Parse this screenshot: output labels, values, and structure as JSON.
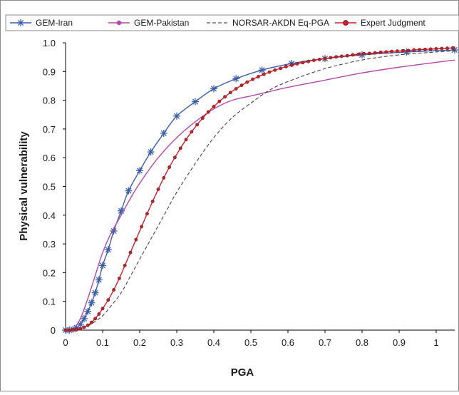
{
  "chart_data": {
    "type": "line",
    "xlabel": "PGA",
    "ylabel": "Physical vulnerability",
    "xlim": [
      0,
      1.05
    ],
    "ylim": [
      0,
      1.0
    ],
    "x_ticks": [
      "0",
      "0.1",
      "0.2",
      "0.3",
      "0.4",
      "0.5",
      "0.6",
      "0.7",
      "0.8",
      "0.9",
      "1"
    ],
    "y_ticks": [
      "0",
      "0.1",
      "0.2",
      "0.3",
      "0.4",
      "0.5",
      "0.6",
      "0.7",
      "0.8",
      "0.9",
      "1.0"
    ],
    "grid": false,
    "legend_position": "top",
    "series": [
      {
        "name": "GEM-Iran",
        "color": "#3a5ea8",
        "marker": "asterisk",
        "line": "solid",
        "x": [
          0.0,
          0.01,
          0.02,
          0.03,
          0.04,
          0.05,
          0.06,
          0.07,
          0.08,
          0.09,
          0.1,
          0.115,
          0.13,
          0.15,
          0.17,
          0.2,
          0.23,
          0.265,
          0.3,
          0.35,
          0.4,
          0.46,
          0.53,
          0.61,
          0.7,
          0.8,
          0.92,
          1.05
        ],
        "y": [
          0.0,
          0.0,
          0.003,
          0.008,
          0.02,
          0.04,
          0.065,
          0.095,
          0.13,
          0.175,
          0.225,
          0.28,
          0.345,
          0.415,
          0.485,
          0.555,
          0.62,
          0.685,
          0.745,
          0.795,
          0.84,
          0.875,
          0.905,
          0.928,
          0.945,
          0.958,
          0.968,
          0.975
        ]
      },
      {
        "name": "GEM-Pakistan",
        "color": "#b04aa8",
        "marker": "none",
        "line": "solid",
        "x": [
          0.0,
          0.02,
          0.04,
          0.06,
          0.08,
          0.1,
          0.12,
          0.15,
          0.18,
          0.21,
          0.25,
          0.3,
          0.35,
          0.4,
          0.45,
          0.5,
          0.55,
          0.6,
          0.7,
          0.8,
          0.9,
          1.0,
          1.05
        ],
        "y": [
          0.0,
          0.005,
          0.04,
          0.11,
          0.19,
          0.27,
          0.33,
          0.4,
          0.47,
          0.53,
          0.6,
          0.67,
          0.725,
          0.77,
          0.8,
          0.815,
          0.83,
          0.845,
          0.87,
          0.895,
          0.915,
          0.932,
          0.94
        ]
      },
      {
        "name": "NORSAR-AKDN Eq-PGA",
        "color": "#333333",
        "marker": "none",
        "line": "dashed",
        "x": [
          0.0,
          0.04,
          0.06,
          0.08,
          0.1,
          0.12,
          0.15,
          0.18,
          0.21,
          0.24,
          0.27,
          0.3,
          0.35,
          0.4,
          0.45,
          0.5,
          0.55,
          0.6,
          0.7,
          0.8,
          0.9,
          1.0,
          1.05
        ],
        "y": [
          0.0,
          0.005,
          0.015,
          0.03,
          0.05,
          0.08,
          0.13,
          0.2,
          0.27,
          0.34,
          0.41,
          0.48,
          0.58,
          0.67,
          0.74,
          0.79,
          0.835,
          0.865,
          0.91,
          0.94,
          0.958,
          0.968,
          0.972
        ]
      },
      {
        "name": "Expert Judgment",
        "color": "#c8232c",
        "marker": "dot",
        "line": "solid",
        "x": [
          0.0,
          0.01,
          0.02,
          0.03,
          0.04,
          0.05,
          0.06,
          0.07,
          0.08,
          0.09,
          0.1,
          0.115,
          0.13,
          0.145,
          0.16,
          0.175,
          0.19,
          0.205,
          0.22,
          0.235,
          0.25,
          0.265,
          0.28,
          0.295,
          0.31,
          0.325,
          0.34,
          0.355,
          0.37,
          0.385,
          0.4,
          0.415,
          0.43,
          0.445,
          0.46,
          0.475,
          0.49,
          0.505,
          0.52,
          0.535,
          0.55,
          0.565,
          0.58,
          0.595,
          0.61,
          0.625,
          0.64,
          0.655,
          0.67,
          0.685,
          0.7,
          0.715,
          0.73,
          0.745,
          0.76,
          0.775,
          0.79,
          0.805,
          0.82,
          0.835,
          0.85,
          0.865,
          0.88,
          0.895,
          0.91,
          0.925,
          0.94,
          0.955,
          0.97,
          0.985,
          1.0,
          1.015,
          1.03,
          1.045
        ],
        "y": [
          0.0,
          0.0,
          0.001,
          0.002,
          0.005,
          0.01,
          0.017,
          0.027,
          0.04,
          0.056,
          0.075,
          0.105,
          0.14,
          0.18,
          0.225,
          0.27,
          0.315,
          0.36,
          0.405,
          0.448,
          0.49,
          0.53,
          0.567,
          0.601,
          0.633,
          0.663,
          0.69,
          0.715,
          0.738,
          0.759,
          0.778,
          0.796,
          0.812,
          0.827,
          0.84,
          0.852,
          0.863,
          0.873,
          0.882,
          0.89,
          0.898,
          0.905,
          0.911,
          0.917,
          0.922,
          0.927,
          0.931,
          0.935,
          0.939,
          0.942,
          0.945,
          0.948,
          0.951,
          0.953,
          0.955,
          0.958,
          0.96,
          0.962,
          0.963,
          0.965,
          0.967,
          0.968,
          0.97,
          0.971,
          0.972,
          0.973,
          0.975,
          0.976,
          0.977,
          0.978,
          0.979,
          0.98,
          0.981,
          0.982
        ]
      }
    ]
  }
}
